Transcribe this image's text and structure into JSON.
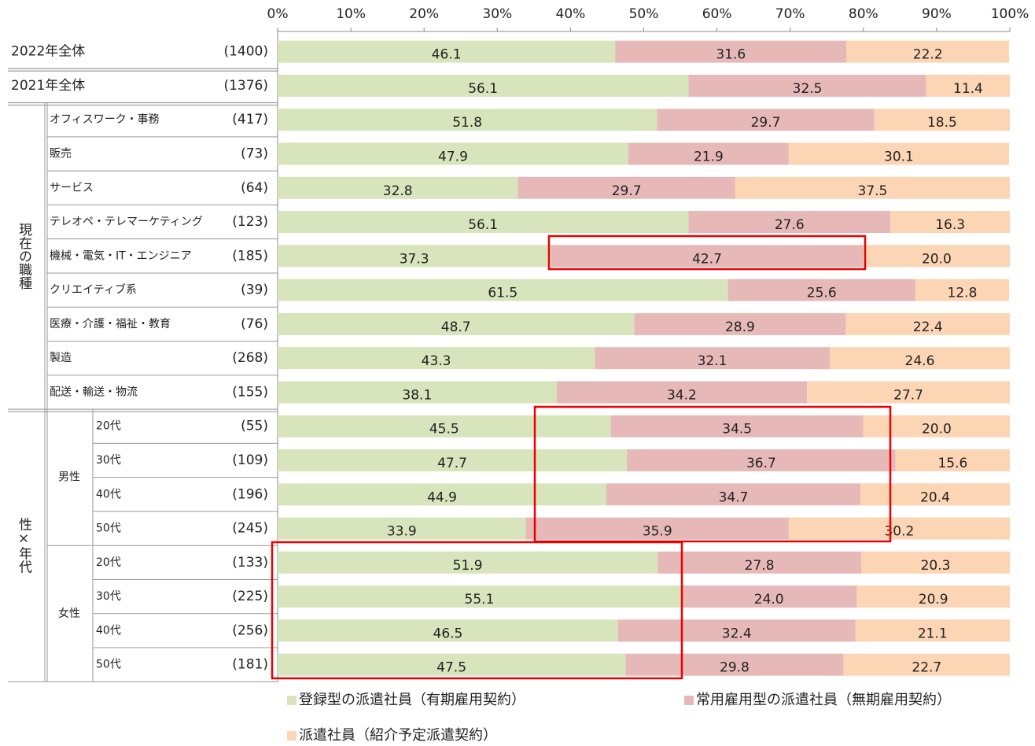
{
  "chart_data": {
    "type": "stacked-bar-horizontal",
    "categories": [
      "2022年全体",
      "2021年全体",
      "オフィスワーク・事務",
      "販売",
      "サービス",
      "テレオペ・テレマーケティング",
      "機械・電気・IT・エンジニア",
      "クリエイティブ系",
      "医療・介護・福祉・教育",
      "製造",
      "配送・輸送・物流",
      "20代",
      "30代",
      "40代",
      "50代",
      "20代",
      "30代",
      "40代",
      "50代"
    ],
    "sample_sizes": [
      "(1400)",
      "(1376)",
      "(417)",
      "(73)",
      "(64)",
      "(123)",
      "(185)",
      "(39)",
      "(76)",
      "(268)",
      "(155)",
      "(55)",
      "(109)",
      "(196)",
      "(245)",
      "(133)",
      "(225)",
      "(256)",
      "(181)"
    ],
    "groups": [
      {
        "label": "現在の職種",
        "rows": [
          2,
          10
        ]
      },
      {
        "label": "性×年代",
        "rows": [
          11,
          18
        ]
      }
    ],
    "subgroups": [
      {
        "label": "男性",
        "rows": [
          11,
          14
        ]
      },
      {
        "label": "女性",
        "rows": [
          15,
          18
        ]
      }
    ],
    "series": [
      {
        "name": "登録型の派遣社員（有期雇用契約）",
        "color": "#d8e4bc",
        "values": [
          46.1,
          56.1,
          51.8,
          47.9,
          32.8,
          56.1,
          37.3,
          61.5,
          48.7,
          43.3,
          38.1,
          45.5,
          47.7,
          44.9,
          33.9,
          51.9,
          55.1,
          46.5,
          47.5
        ],
        "value_labels": [
          "46.1",
          "56.1",
          "51.8",
          "47.9",
          "32.8",
          "56.1",
          "37.3",
          "61.5",
          "48.7",
          "43.3",
          "38.1",
          "45.5",
          "47.7",
          "44.9",
          "33.9",
          "51.9",
          "55.1",
          "46.5",
          "47.5"
        ]
      },
      {
        "name": "常用雇用型の派遣社員（無期雇用契約）",
        "color": "#e6b9b8",
        "values": [
          31.6,
          32.5,
          29.7,
          21.9,
          29.7,
          27.6,
          42.7,
          25.6,
          28.9,
          32.1,
          34.2,
          34.5,
          36.7,
          34.7,
          35.9,
          27.8,
          24.0,
          32.4,
          29.8
        ],
        "value_labels": [
          "31.6",
          "32.5",
          "29.7",
          "21.9",
          "29.7",
          "27.6",
          "42.7",
          "25.6",
          "28.9",
          "32.1",
          "34.2",
          "34.5",
          "36.7",
          "34.7",
          "35.9",
          "27.8",
          "24.0",
          "32.4",
          "29.8"
        ]
      },
      {
        "name": "派遣社員（紹介予定派遣契約）",
        "color": "#fcd5b5",
        "values": [
          22.2,
          11.4,
          18.5,
          30.1,
          37.5,
          16.3,
          20.0,
          12.8,
          22.4,
          24.6,
          27.7,
          20.0,
          15.6,
          20.4,
          30.2,
          20.3,
          20.9,
          21.1,
          22.7
        ],
        "value_labels": [
          "22.2",
          "11.4",
          "18.5",
          "30.1",
          "37.5",
          "16.3",
          "20.0",
          "12.8",
          "22.4",
          "24.6",
          "27.7",
          "20.0",
          "15.6",
          "20.4",
          "30.2",
          "20.3",
          "20.9",
          "21.1",
          "22.7"
        ]
      }
    ],
    "xlim": [
      0,
      100
    ],
    "xticks": [
      {
        "value": 0,
        "label": "0%"
      },
      {
        "value": 10,
        "label": "10%"
      },
      {
        "value": 20,
        "label": "20%"
      },
      {
        "value": 30,
        "label": "30%"
      },
      {
        "value": 40,
        "label": "40%"
      },
      {
        "value": 50,
        "label": "50%"
      },
      {
        "value": 60,
        "label": "60%"
      },
      {
        "value": 70,
        "label": "70%"
      },
      {
        "value": 80,
        "label": "80%"
      },
      {
        "value": 90,
        "label": "90%"
      },
      {
        "value": 100,
        "label": "100%"
      }
    ]
  }
}
